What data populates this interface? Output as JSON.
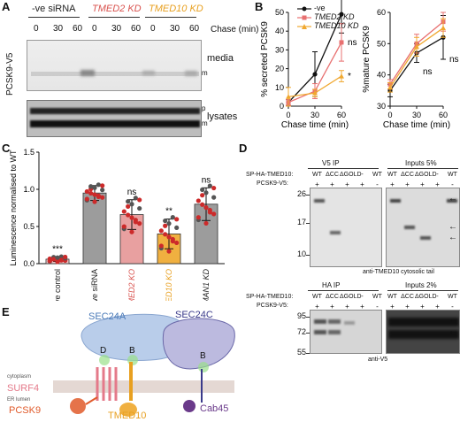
{
  "panels": {
    "A": {
      "label": "A",
      "groups": [
        {
          "text": "-ve siRNA",
          "color": "#222222",
          "italic": false
        },
        {
          "text": "TMED2 KD",
          "color": "#d9534f",
          "italic": true
        },
        {
          "text": "TMED10 KD",
          "color": "#e8a020",
          "italic": true
        }
      ],
      "chase_values": [
        "0",
        "30",
        "60",
        "0",
        "30",
        "60",
        "0",
        "30",
        "60"
      ],
      "chase_label": "Chase (min)",
      "y_label": "PCSK9-V5",
      "media_label": "media",
      "media_band": "m",
      "lysates_label": "lysates",
      "lysates_bands": [
        "p",
        "m"
      ]
    },
    "B": {
      "label": "B",
      "legend": [
        {
          "text": "-ve",
          "color": "#111111",
          "marker": "circle",
          "italic": false
        },
        {
          "text": "TMED2 KD",
          "color": "#e87070",
          "marker": "square",
          "italic": true
        },
        {
          "text": "TMED10 KD",
          "color": "#f0a830",
          "marker": "triangle",
          "italic": true
        }
      ]
    },
    "C": {
      "label": "C"
    },
    "D": {
      "label": "D",
      "row_label_tmed": "SP-HA-TMED10:",
      "row_label_pcsk": "PCSK9-V5:",
      "top": {
        "headers": [
          "V5 IP",
          "Inputs 5%"
        ],
        "tmed": [
          "WT",
          "ΔCC",
          "ΔGOLD",
          "-",
          "WT",
          "WT",
          "ΔCC",
          "ΔGOLD",
          "-",
          "WT"
        ],
        "pcsk": [
          "+",
          "+",
          "+",
          "+",
          "-",
          "+",
          "+",
          "+",
          "+",
          "-"
        ],
        "mw": [
          "26",
          "17",
          "10"
        ],
        "caption": "anti-TMED10 cytosolic tail"
      },
      "bottom": {
        "headers": [
          "HA IP",
          "Inputs 2%"
        ],
        "tmed": [
          "WT",
          "ΔCC",
          "ΔGOLD",
          "-",
          "WT",
          "WT",
          "ΔCC",
          "ΔGOLD",
          "-",
          "WT"
        ],
        "pcsk": [
          "+",
          "+",
          "+",
          "+",
          "-",
          "+",
          "+",
          "+",
          "+",
          "-"
        ],
        "mw": [
          "95",
          "72",
          "55"
        ],
        "caption": "anti-V5"
      }
    },
    "E": {
      "label": "E",
      "sec24a": "SEC24A",
      "sec24c": "SEC24C",
      "site_d": "D",
      "site_b1": "B",
      "site_b2": "B",
      "cytoplasm": "cytoplasm",
      "surf4": "SURF4",
      "er_lumen": "ER lumen",
      "pcsk9": "PCSK9",
      "tmed10": "TMED10",
      "cab45": "Cab45",
      "colors": {
        "sec24a": "#4a7ab8",
        "sec24c": "#3a3a8a",
        "surf4": "#e47a8a",
        "pcsk9": "#e05a2a",
        "tmed10": "#e8a020",
        "cab45": "#6a3a8a"
      }
    }
  },
  "chart_data": [
    {
      "type": "line",
      "ylabel": "% secreted PCSK9",
      "xlabel": "Chase time (min)",
      "x": [
        0,
        30,
        60
      ],
      "xlim": [
        0,
        60
      ],
      "ylim": [
        0,
        50
      ],
      "xticks": [
        "0",
        "30",
        "60"
      ],
      "yticks": [
        "0",
        "10",
        "20",
        "30",
        "40",
        "50"
      ],
      "series": [
        {
          "name": "-ve",
          "color": "#111111",
          "marker": "circle",
          "values": [
            2,
            17,
            49
          ],
          "err": [
            1.5,
            12,
            10
          ]
        },
        {
          "name": "TMED2 KD",
          "color": "#e87070",
          "marker": "square",
          "values": [
            2,
            8,
            34
          ],
          "err": [
            1.5,
            4,
            10
          ]
        },
        {
          "name": "TMED10 KD",
          "color": "#f0a830",
          "marker": "triangle",
          "values": [
            5,
            7,
            16
          ],
          "err": [
            5,
            2,
            3
          ]
        }
      ],
      "annotations": [
        {
          "text": "ns",
          "x": 60,
          "y": 34
        },
        {
          "text": "*",
          "x": 60,
          "y": 16
        }
      ]
    },
    {
      "type": "line",
      "ylabel": "%mature PCSK9",
      "xlabel": "Chase time (min)",
      "x": [
        0,
        30,
        60
      ],
      "xlim": [
        0,
        60
      ],
      "ylim": [
        30,
        60
      ],
      "xticks": [
        "0",
        "30",
        "60"
      ],
      "yticks": [
        "30",
        "40",
        "50",
        "60"
      ],
      "series": [
        {
          "name": "-ve",
          "color": "#111111",
          "marker": "circle",
          "values": [
            35,
            47,
            52
          ],
          "err": [
            2,
            3,
            7
          ]
        },
        {
          "name": "TMED2 KD",
          "color": "#e87070",
          "marker": "square",
          "values": [
            37,
            50,
            57
          ],
          "err": [
            1.5,
            3,
            3
          ]
        },
        {
          "name": "TMED10 KD",
          "color": "#f0a830",
          "marker": "triangle",
          "values": [
            36,
            49,
            55
          ],
          "err": [
            1.5,
            3,
            3
          ]
        }
      ],
      "annotations": [
        {
          "text": "ns",
          "x": 30,
          "y": 41
        },
        {
          "text": "ns",
          "x": 60,
          "y": 45
        }
      ]
    },
    {
      "type": "bar",
      "ylabel": "Luminescence normalised to WT",
      "categories": [
        "negative control",
        "-ve siRNA",
        "TMED2 KO",
        "TMED10 KO",
        "LMAN1 KD"
      ],
      "category_colors": [
        "#222222",
        "#222222",
        "#d9534f",
        "#e8a020",
        "#222222"
      ],
      "category_italic": [
        false,
        false,
        true,
        true,
        true
      ],
      "values": [
        0.06,
        0.95,
        0.66,
        0.4,
        0.8
      ],
      "err": [
        0.03,
        0.1,
        0.2,
        0.2,
        0.22
      ],
      "bar_colors": [
        "#f0c8c8",
        "#9c9c9c",
        "#e8a0a0",
        "#f0b040",
        "#9c9c9c"
      ],
      "ylim": [
        0,
        1.5
      ],
      "yticks": [
        "0.0",
        "0.5",
        "1.0",
        "1.5"
      ],
      "significance": [
        "***",
        "",
        "ns",
        "**",
        "ns"
      ]
    }
  ]
}
